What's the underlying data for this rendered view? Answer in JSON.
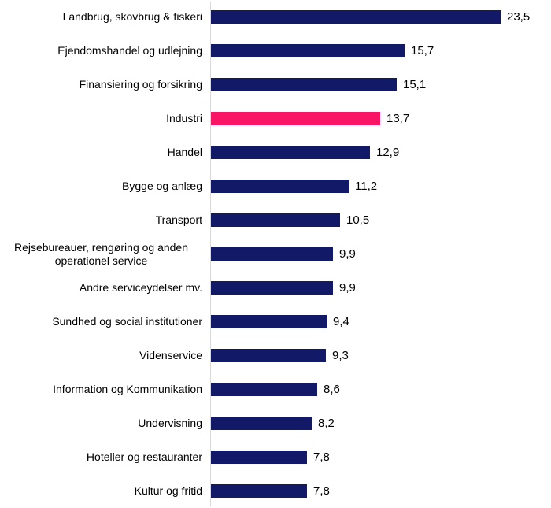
{
  "chart_data": {
    "type": "bar",
    "orientation": "horizontal",
    "title": "",
    "xlabel": "",
    "ylabel": "",
    "xlim": [
      0,
      23.5
    ],
    "grid": false,
    "legend": "none",
    "decimal_separator": ",",
    "categories": [
      "Landbrug, skovbrug & fiskeri",
      "Ejendomshandel og udlejning",
      "Finansiering og forsikring",
      "Industri",
      "Handel",
      "Bygge og anlæg",
      "Transport",
      "Rejsebureauer, rengøring og anden\noperationel service",
      "Andre serviceydelser mv.",
      "Sundhed og social institutioner",
      "Videnservice",
      "Information og Kommunikation",
      "Undervisning",
      "Hoteller og restauranter",
      "Kultur og fritid"
    ],
    "values": [
      23.5,
      15.7,
      15.1,
      13.7,
      12.9,
      11.2,
      10.5,
      9.9,
      9.9,
      9.4,
      9.3,
      8.6,
      8.2,
      7.8,
      7.8
    ],
    "value_labels": [
      "23,5",
      "15,7",
      "15,1",
      "13,7",
      "12,9",
      "11,2",
      "10,5",
      "9,9",
      "9,9",
      "9,4",
      "9,3",
      "8,6",
      "8,2",
      "7,8",
      "7,8"
    ],
    "highlight_category": "Industri",
    "colors": {
      "bar": "#121a68",
      "highlight_bar": "#fa1465",
      "axis_line": "#d9d9d9",
      "text": "#000000"
    }
  }
}
